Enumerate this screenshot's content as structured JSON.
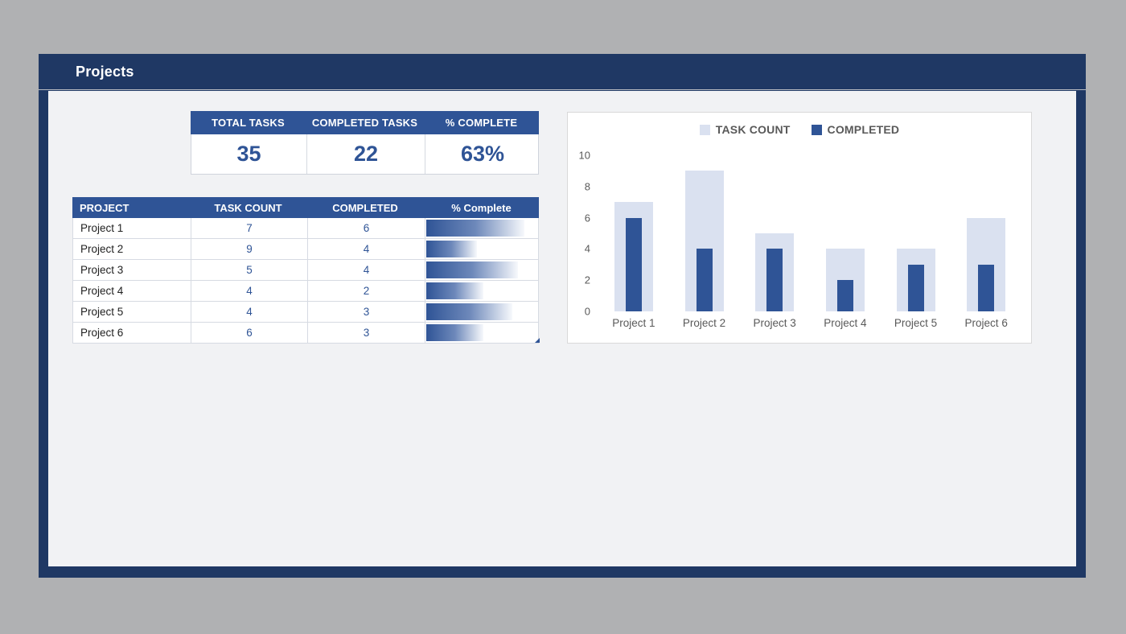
{
  "header": {
    "title": "Projects"
  },
  "summary": {
    "columns": [
      {
        "label": "TOTAL TASKS",
        "value": "35"
      },
      {
        "label": "COMPLETED TASKS",
        "value": "22"
      },
      {
        "label": "% COMPLETE",
        "value": "63%"
      }
    ]
  },
  "table": {
    "headers": [
      "PROJECT",
      "TASK COUNT",
      "COMPLETED",
      "% Complete"
    ],
    "rows": [
      {
        "project": "Project 1",
        "task_count": 7,
        "completed": 6
      },
      {
        "project": "Project 2",
        "task_count": 9,
        "completed": 4
      },
      {
        "project": "Project 3",
        "task_count": 5,
        "completed": 4
      },
      {
        "project": "Project 4",
        "task_count": 4,
        "completed": 2
      },
      {
        "project": "Project 5",
        "task_count": 4,
        "completed": 3
      },
      {
        "project": "Project 6",
        "task_count": 6,
        "completed": 3
      }
    ]
  },
  "chart_data": {
    "type": "bar",
    "title": "",
    "categories": [
      "Project 1",
      "Project 2",
      "Project 3",
      "Project 4",
      "Project 5",
      "Project 6"
    ],
    "series": [
      {
        "name": "TASK COUNT",
        "values": [
          7,
          9,
          5,
          4,
          4,
          6
        ],
        "color": "#DAE1F0"
      },
      {
        "name": "COMPLETED",
        "values": [
          6,
          4,
          4,
          2,
          3,
          3
        ],
        "color": "#2F5496"
      }
    ],
    "xlabel": "",
    "ylabel": "",
    "ylim": [
      0,
      10
    ],
    "yticks": [
      0,
      2,
      4,
      6,
      8,
      10
    ],
    "grid": false,
    "legend_position": "top",
    "bar_style": "overlapped"
  },
  "colors": {
    "frame_navy": "#1F3864",
    "accent_blue": "#2F5496",
    "light_series": "#DAE1F0",
    "content_bg": "#F1F2F4",
    "page_bg": "#B0B1B3"
  }
}
